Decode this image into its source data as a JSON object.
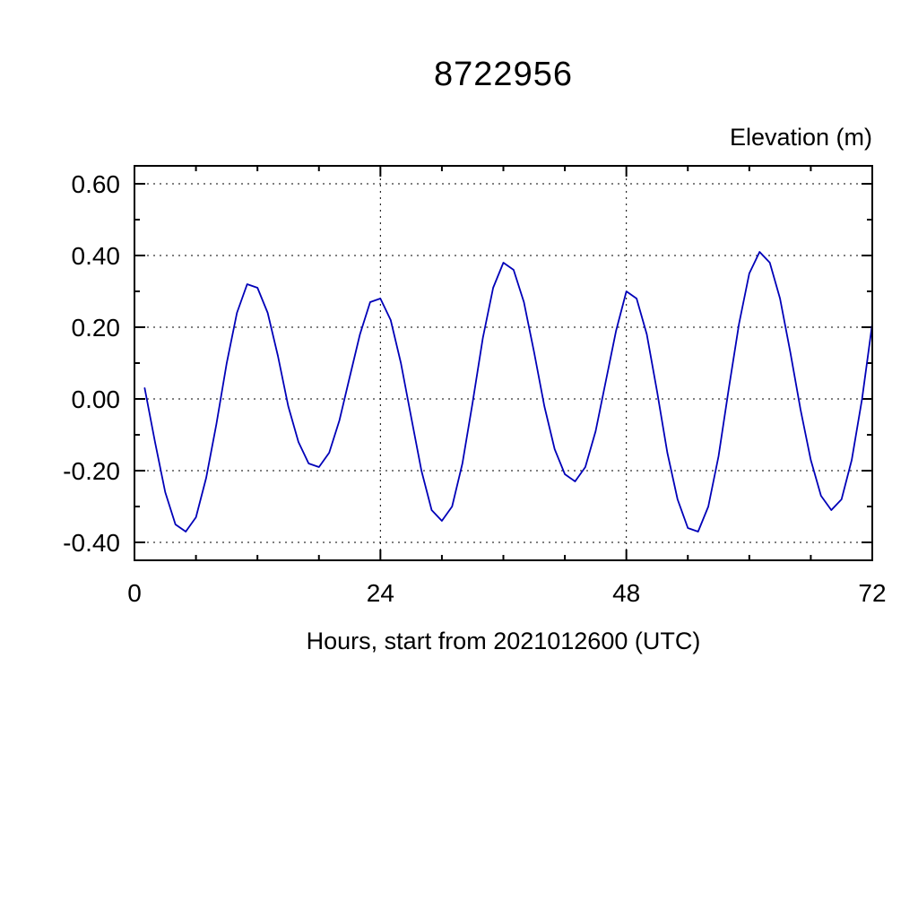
{
  "chart_data": {
    "type": "line",
    "title": "8722956",
    "ylabel": "Elevation (m)",
    "xlabel": "Hours, start from 2021012600 (UTC)",
    "xlim": [
      0,
      72
    ],
    "ylim": [
      -0.45,
      0.65
    ],
    "xticks": {
      "values": [
        0,
        24,
        48,
        72
      ],
      "labels": [
        "0",
        "24",
        "48",
        "72"
      ]
    },
    "yticks": {
      "values": [
        -0.4,
        -0.2,
        0.0,
        0.2,
        0.4,
        0.6
      ],
      "labels": [
        "-0.40",
        "-0.20",
        "0.00",
        "0.20",
        "0.40",
        "0.60"
      ]
    },
    "x_minor_ticks": [
      6,
      12,
      18,
      30,
      36,
      42,
      54,
      60,
      66
    ],
    "y_minor_ticks": [
      -0.3,
      -0.1,
      0.1,
      0.3,
      0.5
    ],
    "grid": "dashed",
    "grid_lines_x": [
      24,
      48
    ],
    "legend": "none",
    "line_color": "#0000b8",
    "frame_color": "#000000",
    "series": [
      {
        "name": "elevation",
        "x": [
          1,
          2,
          3,
          4,
          5,
          6,
          7,
          8,
          9,
          10,
          11,
          12,
          13,
          14,
          15,
          16,
          17,
          18,
          19,
          20,
          21,
          22,
          23,
          24,
          25,
          26,
          27,
          28,
          29,
          30,
          31,
          32,
          33,
          34,
          35,
          36,
          37,
          38,
          39,
          40,
          41,
          42,
          43,
          44,
          45,
          46,
          47,
          48,
          49,
          50,
          51,
          52,
          53,
          54,
          55,
          56,
          57,
          58,
          59,
          60,
          61,
          62,
          63,
          64,
          65,
          66,
          67,
          68,
          69,
          70,
          71,
          72
        ],
        "y": [
          0.03,
          -0.12,
          -0.26,
          -0.35,
          -0.37,
          -0.33,
          -0.22,
          -0.07,
          0.1,
          0.24,
          0.32,
          0.31,
          0.24,
          0.12,
          -0.02,
          -0.12,
          -0.18,
          -0.19,
          -0.15,
          -0.06,
          0.06,
          0.18,
          0.27,
          0.28,
          0.22,
          0.1,
          -0.05,
          -0.2,
          -0.31,
          -0.34,
          -0.3,
          -0.18,
          -0.01,
          0.17,
          0.31,
          0.38,
          0.36,
          0.27,
          0.13,
          -0.02,
          -0.14,
          -0.21,
          -0.23,
          -0.19,
          -0.09,
          0.05,
          0.19,
          0.3,
          0.28,
          0.18,
          0.02,
          -0.15,
          -0.28,
          -0.36,
          -0.37,
          -0.3,
          -0.16,
          0.03,
          0.21,
          0.35,
          0.41,
          0.38,
          0.28,
          0.13,
          -0.03,
          -0.17,
          -0.27,
          -0.31,
          -0.28,
          -0.17,
          0.0,
          0.21
        ]
      }
    ]
  }
}
